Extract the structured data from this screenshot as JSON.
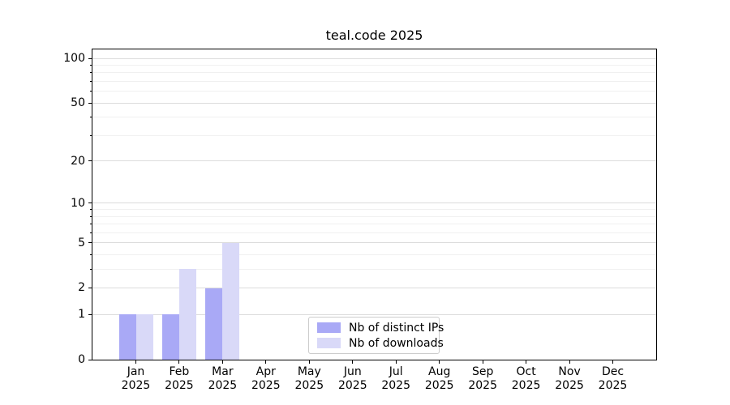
{
  "chart_data": {
    "type": "bar",
    "title": "teal.code 2025",
    "x_tick_year": "2025",
    "months": [
      "Jan",
      "Feb",
      "Mar",
      "Apr",
      "May",
      "Jun",
      "Jul",
      "Aug",
      "Sep",
      "Oct",
      "Nov",
      "Dec"
    ],
    "series": [
      {
        "name": "Nb of distinct IPs",
        "color": "#a9a9f6",
        "values": [
          1,
          1,
          2,
          0,
          0,
          0,
          0,
          0,
          0,
          0,
          0,
          0
        ]
      },
      {
        "name": "Nb of downloads",
        "color": "#d9d9f8",
        "values": [
          1,
          3,
          5,
          0,
          0,
          0,
          0,
          0,
          0,
          0,
          0,
          0
        ]
      }
    ],
    "y_scale": "log1p",
    "y_major_ticks": [
      0,
      1,
      2,
      5,
      10,
      20,
      50,
      100
    ],
    "y_minor_ticks": [
      3,
      4,
      6,
      7,
      8,
      9,
      30,
      40,
      60,
      70,
      80,
      90
    ],
    "ylim": [
      0,
      115
    ],
    "xlabel": "",
    "ylabel": "",
    "grid": true,
    "legend": {
      "position": "lower center"
    }
  }
}
